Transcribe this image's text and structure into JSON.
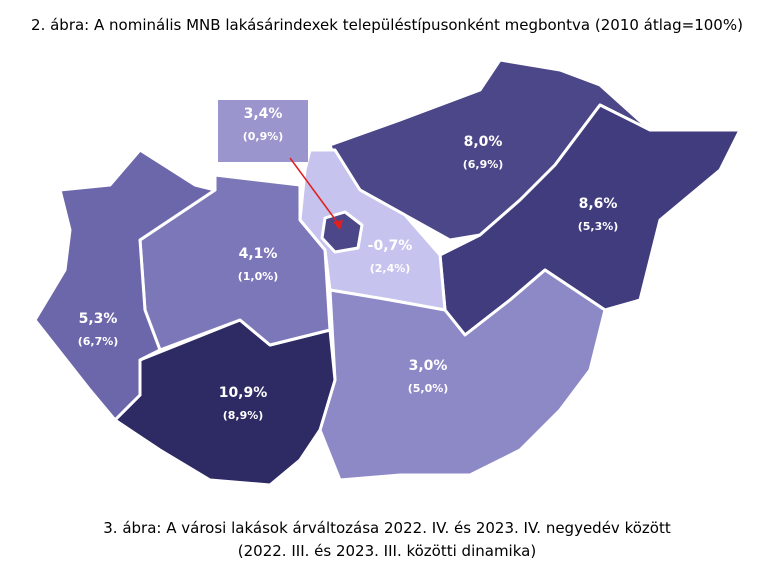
{
  "title": "2. ábra: A nominális MNB lakásárindexek településtípusonként megbontva (2010 átlag=100%)",
  "regions": [
    {
      "value": "3,4%",
      "sub": "(0,9%)"
    },
    {
      "value": "8,0%",
      "sub": "(6,9%)"
    },
    {
      "value": "8,6%",
      "sub": "(5,3%)"
    },
    {
      "value": "-0,7%",
      "sub": "(2,4%)"
    },
    {
      "value": "4,1%",
      "sub": "(1,0%)"
    },
    {
      "value": "5,3%",
      "sub": "(6,7%)"
    },
    {
      "value": "10,9%",
      "sub": "(8,9%)"
    },
    {
      "value": "3,0%",
      "sub": "(5,0%)"
    }
  ],
  "caption": [
    "3. ábra: A városi lakások árváltozása 2022. IV. és 2023. IV. negyedév között",
    "(2022. III. és 2023. III. közötti dinamika)"
  ]
}
